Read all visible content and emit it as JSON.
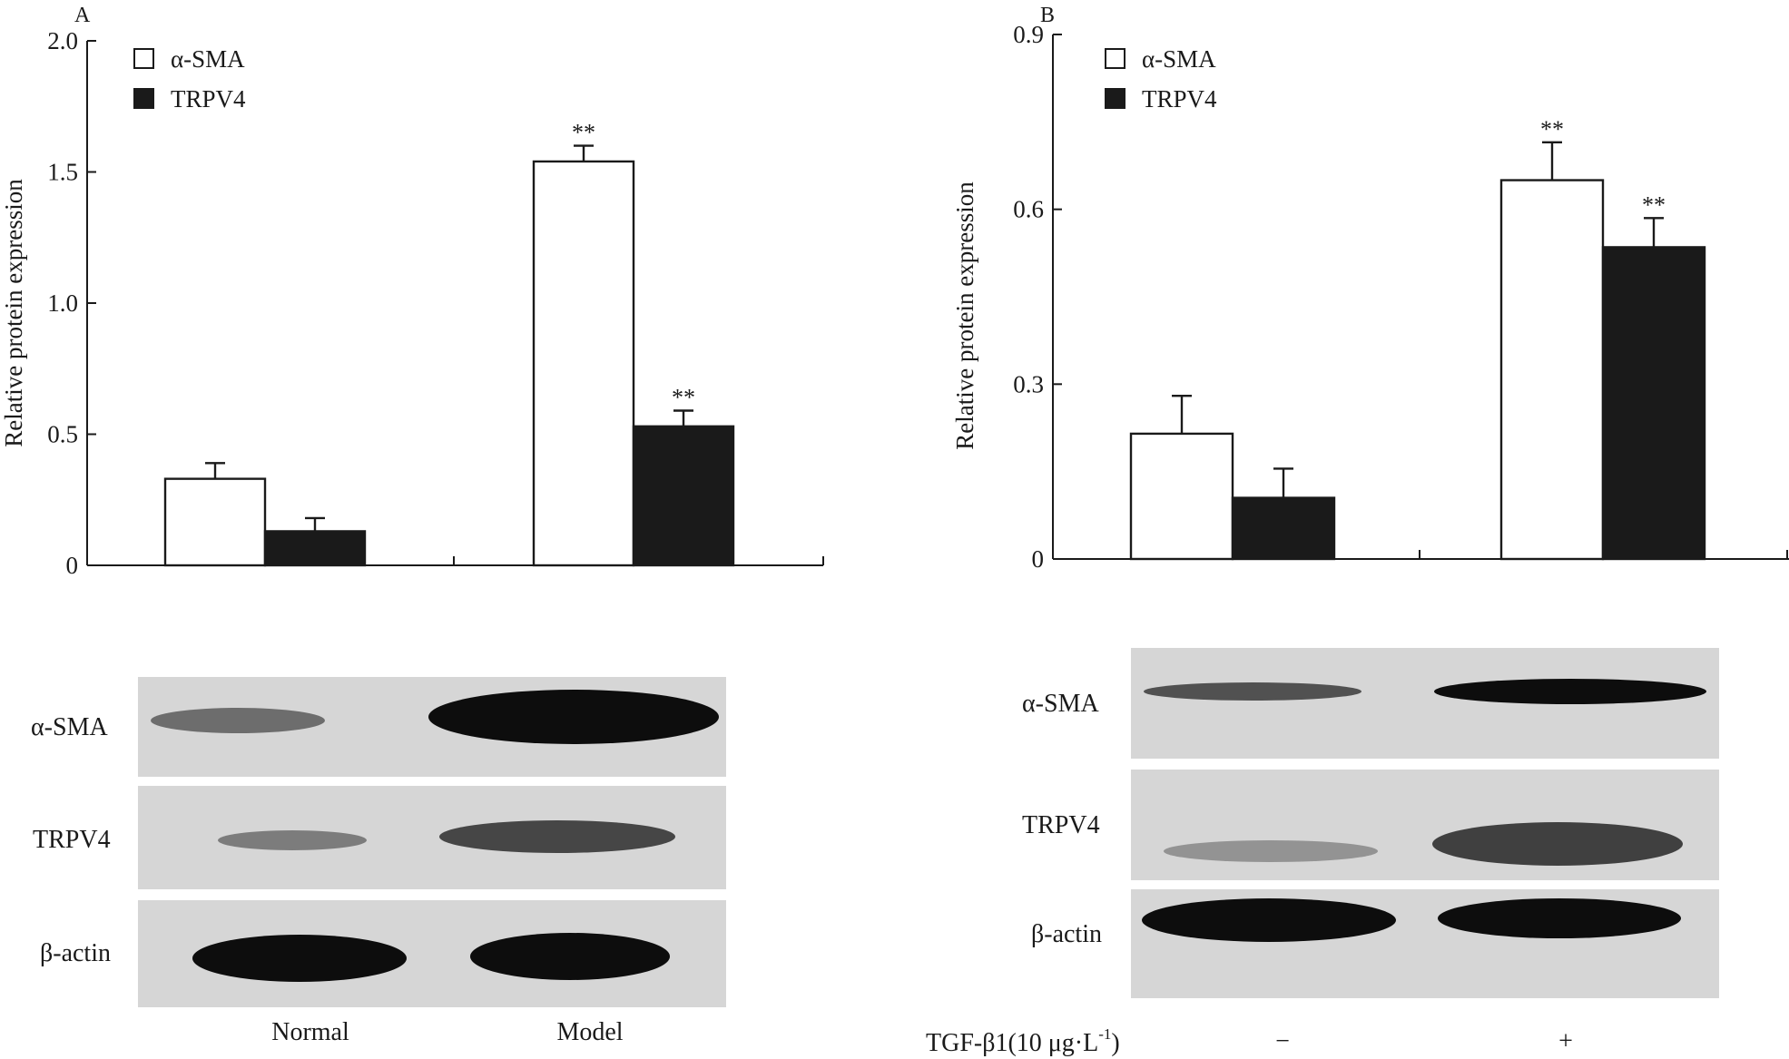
{
  "chart_data": [
    {
      "type": "bar",
      "panel": "A",
      "ylabel": "Relative protein expression",
      "ylim": [
        0,
        2.0
      ],
      "yticks": [
        "0",
        "0.5",
        "1.0",
        "1.5",
        "2.0"
      ],
      "ytick_values": [
        0,
        0.5,
        1.0,
        1.5,
        2.0
      ],
      "categories": [
        "Normal",
        "Model"
      ],
      "legend": [
        "α-SMA",
        "TRPV4"
      ],
      "legend_position": "top-left",
      "series": [
        {
          "name": "α-SMA",
          "color": "#ffffff",
          "values": [
            0.33,
            1.54
          ],
          "errors": [
            0.06,
            0.06
          ],
          "marks": [
            "",
            "**"
          ]
        },
        {
          "name": "TRPV4",
          "color": "#1a1a1a",
          "values": [
            0.13,
            0.53
          ],
          "errors": [
            0.05,
            0.06
          ],
          "marks": [
            "",
            "**"
          ]
        }
      ],
      "blot_labels": [
        "α-SMA",
        "TRPV4",
        "β-actin"
      ],
      "lane_labels": [
        "Normal",
        "Model"
      ]
    },
    {
      "type": "bar",
      "panel": "B",
      "ylabel": "Relative protein expression",
      "ylim": [
        0,
        0.9
      ],
      "yticks": [
        "0",
        "0.3",
        "0.6",
        "0.9"
      ],
      "ytick_values": [
        0,
        0.3,
        0.6,
        0.9
      ],
      "categories": [
        "−",
        "+"
      ],
      "legend": [
        "α-SMA",
        "TRPV4"
      ],
      "legend_position": "top-left",
      "series": [
        {
          "name": "α-SMA",
          "color": "#ffffff",
          "values": [
            0.215,
            0.65
          ],
          "errors": [
            0.065,
            0.065
          ],
          "marks": [
            "",
            "**"
          ]
        },
        {
          "name": "TRPV4",
          "color": "#1a1a1a",
          "values": [
            0.105,
            0.535
          ],
          "errors": [
            0.05,
            0.05
          ],
          "marks": [
            "",
            "**"
          ]
        }
      ],
      "blot_labels": [
        "α-SMA",
        "TRPV4",
        "β-actin"
      ],
      "treatment_label": "TGF-β1(10 μg·L",
      "treatment_exponent": "-1",
      "treatment_close": ")",
      "lane_labels": [
        "−",
        "+"
      ]
    }
  ]
}
